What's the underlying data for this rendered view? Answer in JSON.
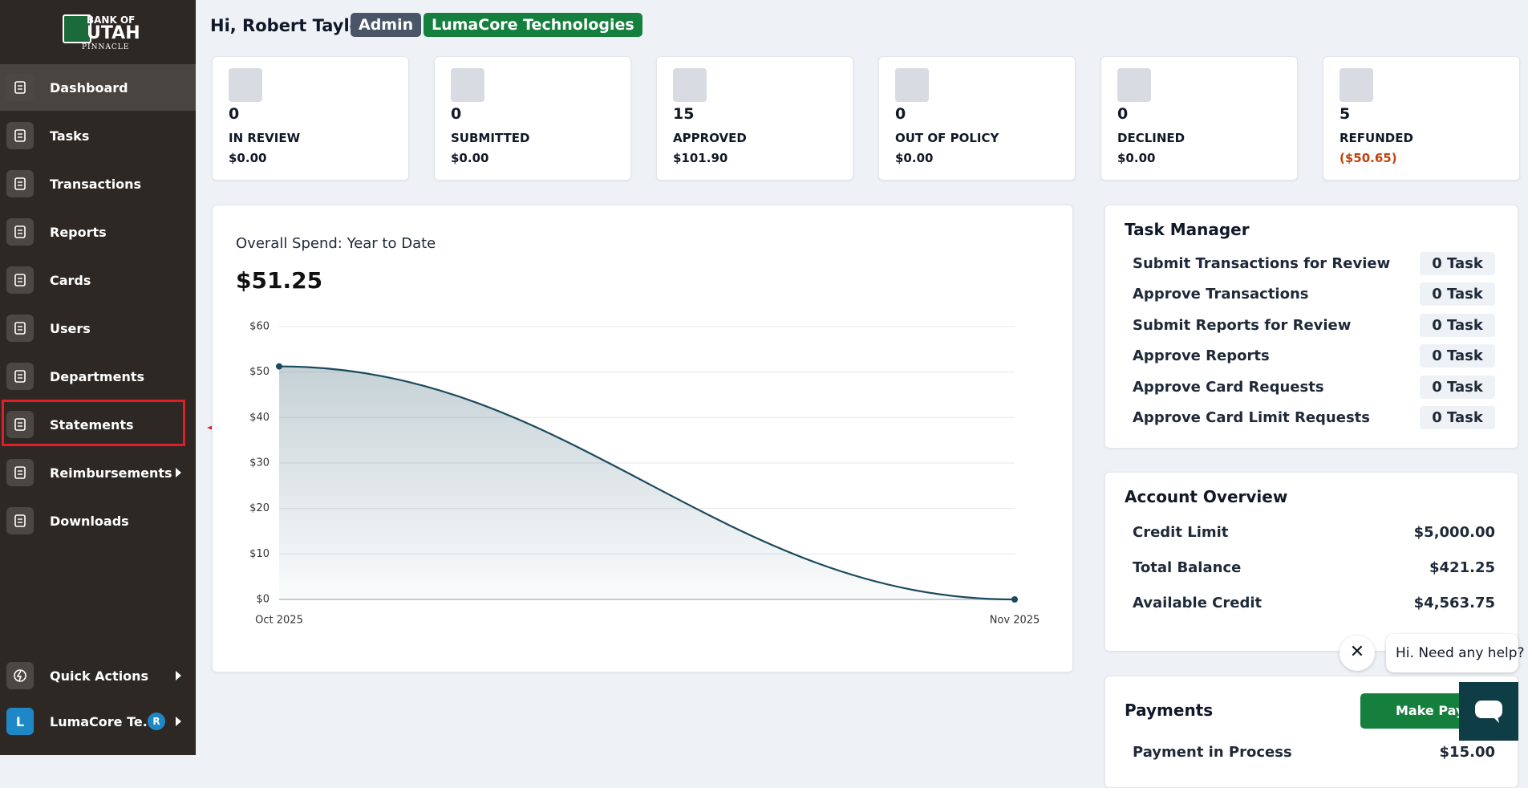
{
  "sidebar": {
    "logo": {
      "line1": "BANK OF",
      "line2": "UTAH",
      "line3": "PINNACLE"
    },
    "nav": [
      "Dashboard",
      "Tasks",
      "Transactions",
      "Reports",
      "Cards",
      "Users",
      "Departments",
      "Statements",
      "Reimbursements",
      "Downloads"
    ],
    "quick_actions": "Quick Actions",
    "account": {
      "initial": "L",
      "name": "LumaCore Te...",
      "user_initial": "R"
    }
  },
  "header": {
    "greeting": "Hi, Robert Taylor",
    "role": "Admin",
    "company": "LumaCore Technologies"
  },
  "stats": [
    {
      "count": 0,
      "label": "IN REVIEW",
      "amount": "$0.00"
    },
    {
      "count": 0,
      "label": "SUBMITTED",
      "amount": "$0.00"
    },
    {
      "count": 15,
      "label": "APPROVED",
      "amount": "$101.90"
    },
    {
      "count": 0,
      "label": "OUT OF POLICY",
      "amount": "$0.00"
    },
    {
      "count": 0,
      "label": "DECLINED",
      "amount": "$0.00"
    },
    {
      "count": 5,
      "label": "REFUNDED",
      "amount": "($50.65)"
    }
  ],
  "chart_data": {
    "type": "line",
    "title": "Overall Spend: Year to Date",
    "total": "$51.25",
    "x": [
      "Oct 2025",
      "Nov 2025"
    ],
    "values": [
      51.25,
      0
    ],
    "color": "#1b4a5e",
    "ylim": [
      0,
      60
    ],
    "yticks": [
      {
        "value": 0,
        "label": "$0"
      },
      {
        "value": 10,
        "label": "$10"
      },
      {
        "value": 20,
        "label": "$20"
      },
      {
        "value": 30,
        "label": "$30"
      },
      {
        "value": 40,
        "label": "$40"
      },
      {
        "value": 50,
        "label": "$50"
      },
      {
        "value": 60,
        "label": "$60"
      }
    ],
    "grid": true
  },
  "task_manager": {
    "title": "Task Manager",
    "tasks": [
      {
        "label": "Submit Transactions for Review",
        "count": "0 Task"
      },
      {
        "label": "Approve Transactions",
        "count": "0 Task"
      },
      {
        "label": "Submit Reports for Review",
        "count": "0 Task"
      },
      {
        "label": "Approve Reports",
        "count": "0 Task"
      },
      {
        "label": "Approve Card Requests",
        "count": "0 Task"
      },
      {
        "label": "Approve Card Limit Requests",
        "count": "0 Task"
      }
    ]
  },
  "account_overview": {
    "title": "Account Overview",
    "rows": [
      {
        "label": "Credit Limit",
        "value": "$5,000.00"
      },
      {
        "label": "Total Balance",
        "value": "$421.25"
      },
      {
        "label": "Available Credit",
        "value": "$4,563.75"
      }
    ]
  },
  "payments": {
    "title": "Payments",
    "button": "Make Payment",
    "rows": [
      {
        "label": "Payment in Process",
        "value": "$15.00"
      }
    ]
  },
  "chat": {
    "greeting": "Hi. Need any help?"
  }
}
